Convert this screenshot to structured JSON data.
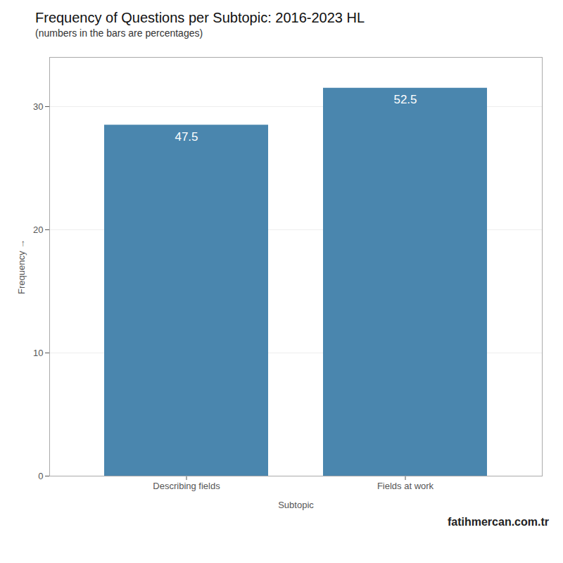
{
  "chart_data": {
    "type": "bar",
    "title": "Frequency of Questions per Subtopic: 2016-2023 HL",
    "subtitle": "(numbers in the bars are percentages)",
    "xlabel": "Subtopic",
    "ylabel": "Frequency",
    "categories": [
      "Describing fields",
      "Fields at work"
    ],
    "values": [
      28.5,
      31.5
    ],
    "percentages": [
      47.5,
      52.5
    ],
    "color": "#4a86ae",
    "ylim": [
      0,
      34
    ],
    "yticks": [
      0,
      10,
      20,
      30
    ],
    "grid": true,
    "watermark": "fatihmercan.com.tr"
  }
}
